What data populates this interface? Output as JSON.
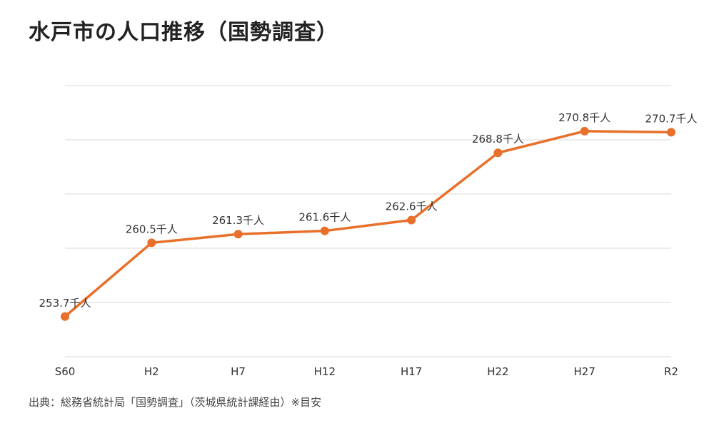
{
  "chart_data": {
    "type": "line",
    "title": "水戸市の人口推移（国勢調査）",
    "categories": [
      "S60",
      "H2",
      "H7",
      "H12",
      "H17",
      "H22",
      "H27",
      "R2"
    ],
    "series": [
      {
        "values": [
          253.7,
          260.5,
          261.3,
          261.6,
          262.6,
          268.8,
          270.8,
          270.7
        ],
        "data_labels": [
          "253.7千人",
          "260.5千人",
          "261.3千人",
          "261.6千人",
          "262.6千人",
          "268.8千人",
          "270.8千人",
          "270.7千人"
        ],
        "color": "#e8702a"
      }
    ],
    "xlabel": "",
    "ylabel": "",
    "ylim": [
      250,
      275
    ],
    "grid": true,
    "y_tick_labels_shown": false,
    "legend": "none",
    "gridline_color": "#d9d9d9",
    "source": "出典：総務省統計局「国勢調査」（茨城県統計課経由）※目安"
  }
}
